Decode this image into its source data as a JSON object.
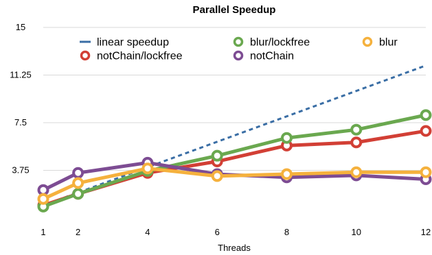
{
  "chart_data": {
    "type": "line",
    "title": "Parallel Speedup",
    "xlabel": "Threads",
    "ylabel": "",
    "categories": [
      "1",
      "2",
      "4",
      "6",
      "8",
      "10",
      "12"
    ],
    "x": [
      1,
      2,
      4,
      6,
      8,
      10,
      12
    ],
    "ylim": [
      0,
      15
    ],
    "yticks": [
      3.75,
      7.5,
      11.25,
      15
    ],
    "ytick_labels": [
      "3.75",
      "7.5",
      "11.25",
      "15"
    ],
    "grid": true,
    "legend_position": "top",
    "series": [
      {
        "name": "linear speedup",
        "style": "dashed",
        "color": "#3a6ea5",
        "x": [
          1,
          12
        ],
        "values": [
          1,
          12
        ]
      },
      {
        "name": "notChain/lockfree",
        "style": "marker-line",
        "color": "#d23f35",
        "values": [
          1.0,
          1.9,
          3.55,
          4.45,
          5.7,
          5.95,
          6.85
        ]
      },
      {
        "name": "blur/lockfree",
        "style": "marker-line",
        "color": "#6aa84f",
        "values": [
          0.9,
          1.9,
          3.7,
          4.9,
          6.3,
          6.95,
          8.1
        ]
      },
      {
        "name": "notChain",
        "style": "marker-line",
        "color": "#7d4c93",
        "values": [
          2.2,
          3.55,
          4.35,
          3.45,
          3.2,
          3.35,
          3.05
        ]
      },
      {
        "name": "blur",
        "style": "marker-line",
        "color": "#f5b13d",
        "values": [
          1.5,
          2.75,
          3.9,
          3.3,
          3.45,
          3.6,
          3.6
        ]
      }
    ]
  }
}
